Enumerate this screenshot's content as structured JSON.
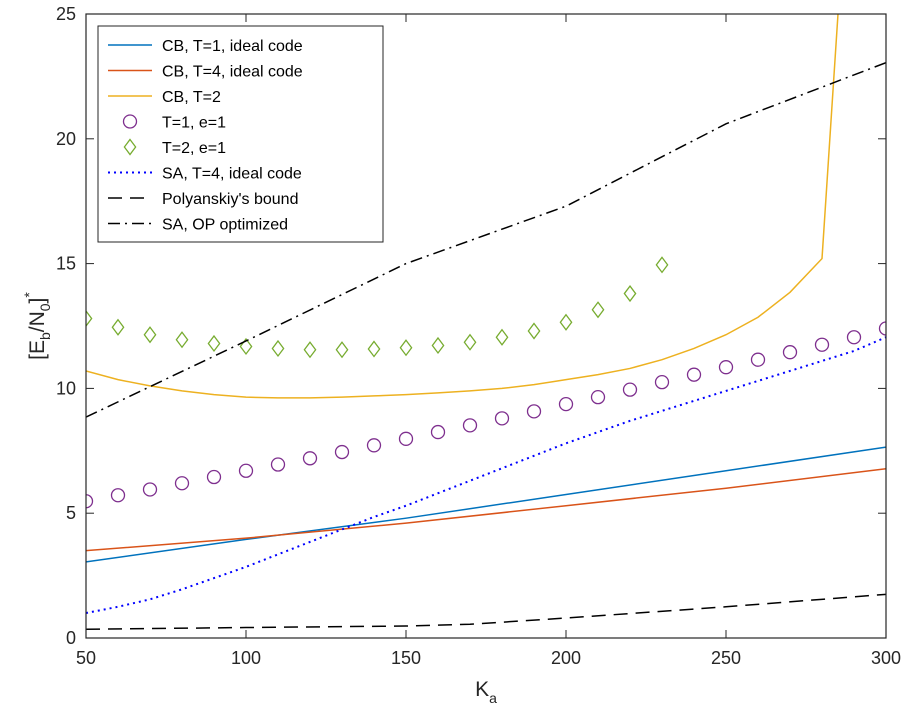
{
  "chart_data": {
    "type": "line",
    "title": "",
    "xlabel": {
      "main": "K",
      "sub": "a"
    },
    "ylabel": {
      "parts": [
        "[E",
        "b",
        "/N",
        "0",
        "]",
        "*"
      ]
    },
    "xlim": [
      50,
      300
    ],
    "ylim": [
      0,
      25
    ],
    "xticks": [
      50,
      100,
      150,
      200,
      250,
      300
    ],
    "yticks": [
      0,
      5,
      10,
      15,
      20,
      25
    ],
    "grid": false,
    "legend_position": "top-left",
    "series": [
      {
        "name": "CB, T=1, ideal code",
        "style": "line",
        "color": "#0072BD",
        "dash": "solid",
        "x": [
          50,
          100,
          150,
          200,
          250,
          300
        ],
        "y": [
          3.05,
          3.95,
          4.8,
          5.75,
          6.7,
          7.65
        ]
      },
      {
        "name": "CB, T=4, ideal code",
        "style": "line",
        "color": "#D95319",
        "dash": "solid",
        "x": [
          50,
          100,
          150,
          200,
          250,
          300
        ],
        "y": [
          3.5,
          4.0,
          4.6,
          5.3,
          6.0,
          6.78
        ]
      },
      {
        "name": "CB, T=2",
        "style": "line",
        "color": "#EDB120",
        "dash": "solid",
        "x": [
          50,
          60,
          70,
          80,
          90,
          100,
          110,
          120,
          130,
          140,
          150,
          160,
          170,
          180,
          190,
          200,
          210,
          220,
          230,
          240,
          250,
          260,
          270,
          280,
          285
        ],
        "y": [
          10.7,
          10.35,
          10.1,
          9.9,
          9.75,
          9.65,
          9.62,
          9.62,
          9.65,
          9.7,
          9.75,
          9.82,
          9.9,
          10.0,
          10.15,
          10.35,
          10.55,
          10.8,
          11.15,
          11.6,
          12.15,
          12.85,
          13.85,
          15.2,
          25
        ]
      },
      {
        "name": "T=1, e=1",
        "style": "marker",
        "marker": "circle",
        "color": "#7E2F8E",
        "x": [
          50,
          60,
          70,
          80,
          90,
          100,
          110,
          120,
          130,
          140,
          150,
          160,
          170,
          180,
          190,
          200,
          210,
          220,
          230,
          240,
          250,
          260,
          270,
          280,
          290,
          300
        ],
        "y": [
          5.48,
          5.72,
          5.95,
          6.2,
          6.45,
          6.7,
          6.95,
          7.2,
          7.45,
          7.72,
          7.98,
          8.25,
          8.52,
          8.8,
          9.08,
          9.37,
          9.65,
          9.95,
          10.25,
          10.55,
          10.85,
          11.15,
          11.45,
          11.75,
          12.05,
          12.4
        ]
      },
      {
        "name": "T=2, e=1",
        "style": "marker",
        "marker": "diamond",
        "color": "#77AC30",
        "x": [
          50,
          60,
          70,
          80,
          90,
          100,
          110,
          120,
          130,
          140,
          150,
          160,
          170,
          180,
          190,
          200,
          210,
          220,
          230
        ],
        "y": [
          12.8,
          12.45,
          12.15,
          11.95,
          11.8,
          11.68,
          11.6,
          11.55,
          11.55,
          11.58,
          11.63,
          11.72,
          11.85,
          12.05,
          12.3,
          12.65,
          13.15,
          13.8,
          14.95
        ]
      },
      {
        "name": "SA, T=4, ideal code",
        "style": "line",
        "color": "#0000FF",
        "dash": "dotted",
        "x": [
          50,
          60,
          70,
          80,
          90,
          100,
          110,
          120,
          130,
          140,
          150,
          160,
          170,
          180,
          190,
          200,
          210,
          220,
          230,
          240,
          250,
          260,
          270,
          280,
          290,
          300
        ],
        "y": [
          1.0,
          1.25,
          1.55,
          1.95,
          2.4,
          2.85,
          3.35,
          3.85,
          4.35,
          4.85,
          5.3,
          5.8,
          6.3,
          6.8,
          7.3,
          7.8,
          8.25,
          8.7,
          9.1,
          9.5,
          9.9,
          10.3,
          10.7,
          11.1,
          11.5,
          12.05
        ]
      },
      {
        "name": "Polyanskiy's bound",
        "style": "line",
        "color": "#000000",
        "dash": "dashed",
        "x": [
          50,
          100,
          150,
          170,
          200,
          250,
          300
        ],
        "y": [
          0.35,
          0.42,
          0.48,
          0.55,
          0.8,
          1.25,
          1.75
        ]
      },
      {
        "name": "SA, OP optimized",
        "style": "line",
        "color": "#000000",
        "dash": "dashdot",
        "x": [
          50,
          100,
          150,
          200,
          250,
          300
        ],
        "y": [
          8.85,
          11.9,
          15.0,
          17.3,
          20.6,
          23.05
        ]
      }
    ]
  }
}
